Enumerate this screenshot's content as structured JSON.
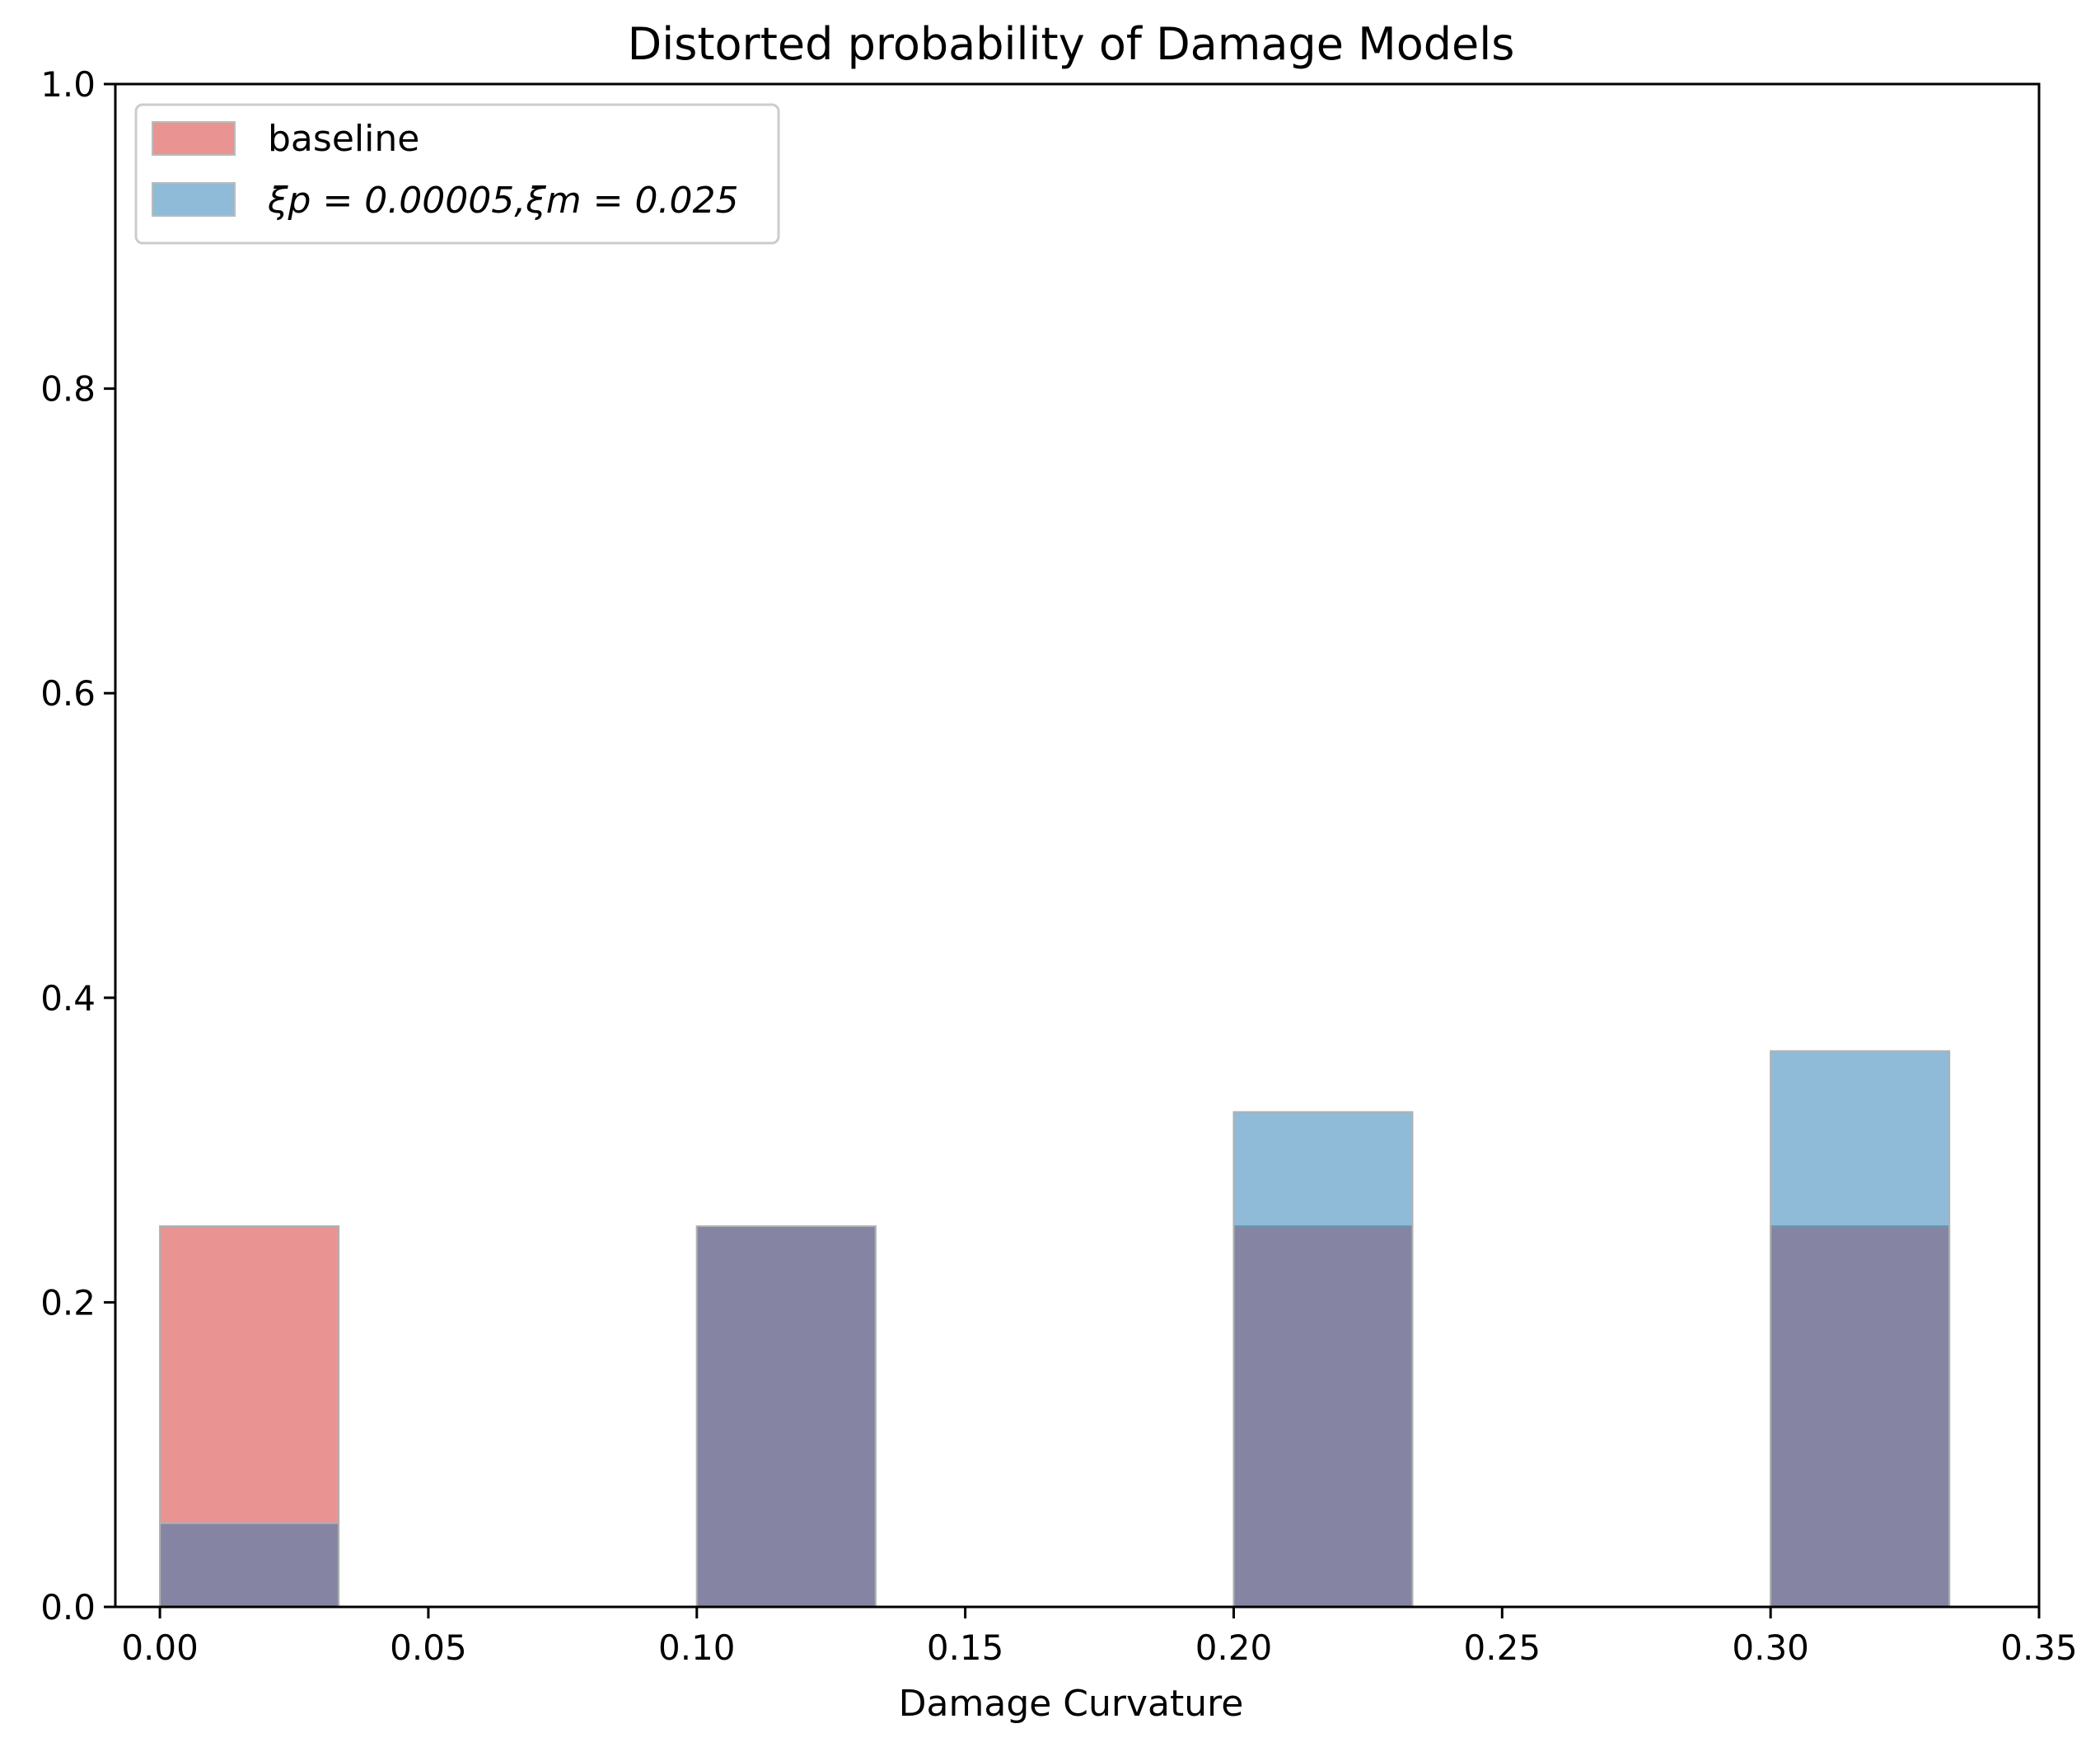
{
  "chart_data": {
    "type": "bar",
    "title": "Distorted probability of Damage Models",
    "xlabel": "Damage Curvature",
    "ylabel": "",
    "xlim": [
      -0.0083,
      0.35
    ],
    "ylim": [
      0,
      1.0
    ],
    "x_ticks": [
      "0.00",
      "0.05",
      "0.10",
      "0.15",
      "0.20",
      "0.25",
      "0.30",
      "0.35"
    ],
    "x_tick_values": [
      0.0,
      0.05,
      0.1,
      0.15,
      0.2,
      0.25,
      0.3,
      0.35
    ],
    "y_ticks": [
      "0.0",
      "0.2",
      "0.4",
      "0.6",
      "0.8",
      "1.0"
    ],
    "y_tick_values": [
      0.0,
      0.2,
      0.4,
      0.6,
      0.8,
      1.0
    ],
    "bar_width": 0.0333,
    "bins": [
      0.0,
      0.1,
      0.2,
      0.3
    ],
    "grid": false,
    "legend_position": "top-left",
    "series": [
      {
        "name": "baseline",
        "color": "#d62728",
        "alpha": 0.5,
        "values": [
          0.25,
          0.25,
          0.25,
          0.25
        ]
      },
      {
        "name": "ξp = 0.00005,ξm = 0.025",
        "color": "#1f77b4",
        "alpha": 0.5,
        "values": [
          0.055,
          0.25,
          0.325,
          0.365
        ]
      }
    ]
  }
}
